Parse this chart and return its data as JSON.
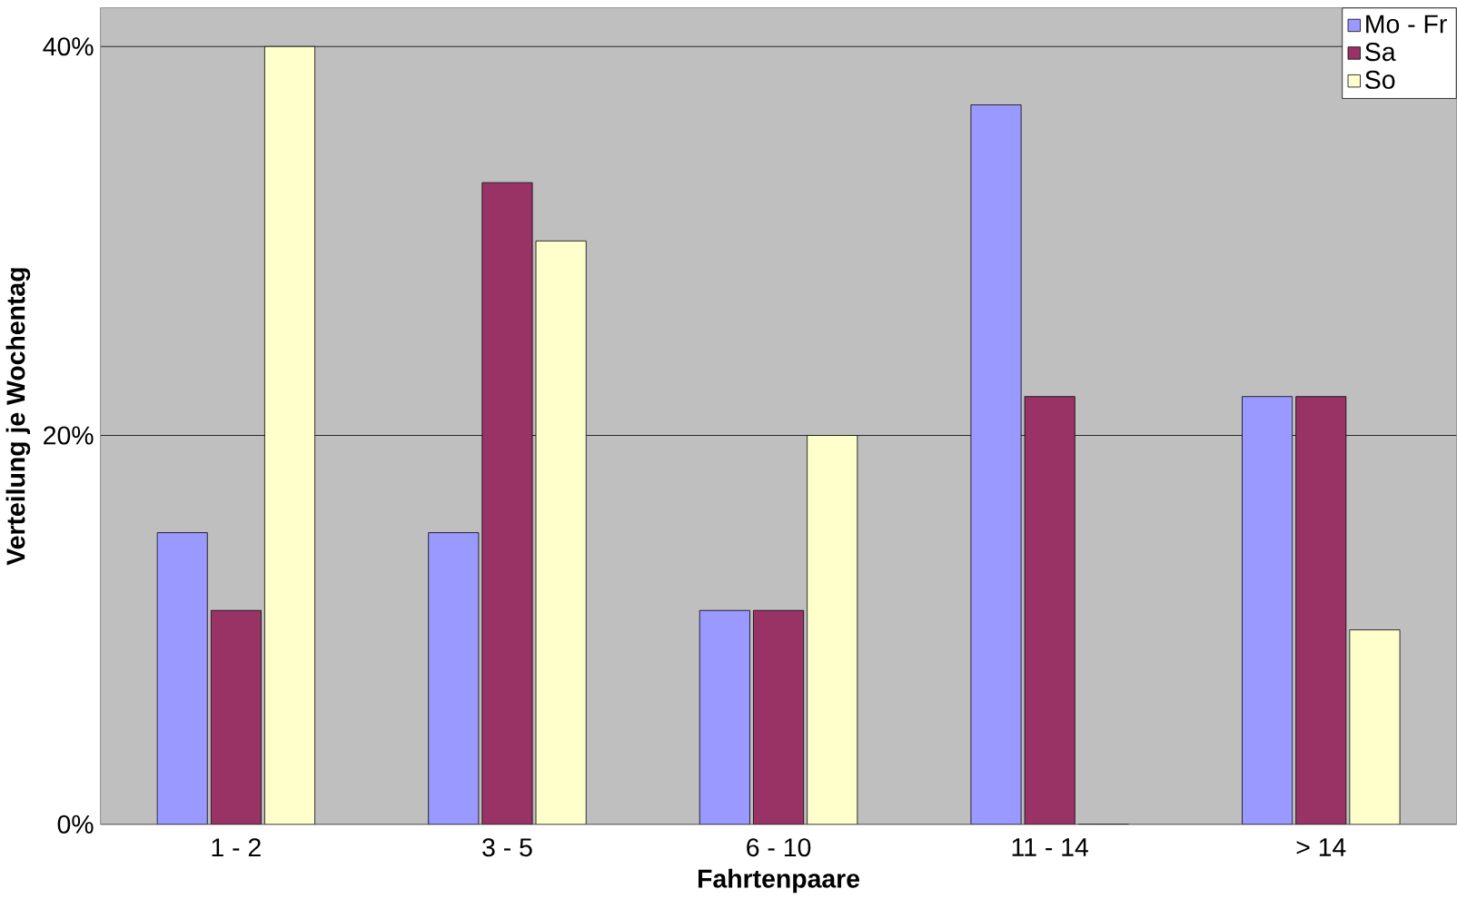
{
  "chart_data": {
    "type": "bar",
    "xlabel": "Fahrtenpaare",
    "ylabel": "Verteilung je Wochentag",
    "categories": [
      "1 - 2",
      "3 - 5",
      "6 - 10",
      "11 - 14",
      "> 14"
    ],
    "series": [
      {
        "name": "Mo - Fr",
        "color": "#9999ff",
        "values": [
          15,
          15,
          11,
          37,
          22
        ]
      },
      {
        "name": "Sa",
        "color": "#993366",
        "values": [
          11,
          33,
          11,
          22,
          22
        ]
      },
      {
        "name": "So",
        "color": "#ffffcc",
        "values": [
          40,
          30,
          20,
          0,
          10
        ]
      }
    ],
    "ylim": [
      0,
      42
    ],
    "yticks": [
      {
        "value": 0,
        "label": "0%"
      },
      {
        "value": 20,
        "label": "20%"
      },
      {
        "value": 40,
        "label": "40%"
      }
    ],
    "grid": "y",
    "legend": "top right"
  }
}
